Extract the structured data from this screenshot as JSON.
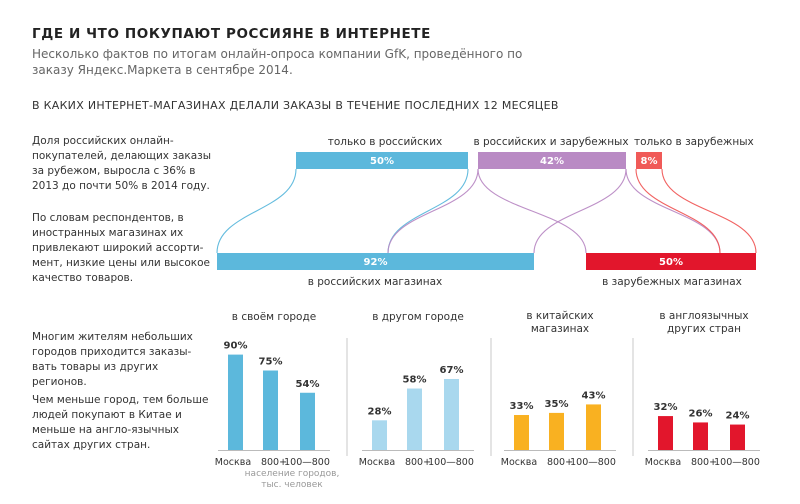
{
  "title": "ГДЕ И ЧТО ПОКУПАЮТ РОССИЯНЕ В ИНТЕРНЕТЕ",
  "subtitle": "Несколько фактов по итогам онлайн-опроса компании GfK, проведённого по заказу Яндекс.Маркета в сентябре 2014.",
  "section_title": "В КАКИХ ИНТЕРНЕТ-МАГАЗИНАХ ДЕЛАЛИ ЗАКАЗЫ В ТЕЧЕНИЕ ПОСЛЕДНИХ 12 МЕСЯЦЕВ",
  "text": {
    "para1": "Доля российских онлайн-покупателей, делающих заказы за рубежом, выросла с 36% в 2013 до почти 50% в 2014 году.",
    "para2": "По словам респондентов, в иностранных магазинах их привлекают широкий ассорти-мент, низкие цены или высокое качество товаров.",
    "para3": "Многим жителям небольших городов приходится заказы-вать товары из других регионов.",
    "para4": "Чем меньше город, тем больше людей покупают в Китае и меньше на англо-язычных сайтах других стран."
  },
  "colors": {
    "blue": "#5cb8dc",
    "purple": "#b98ac4",
    "red_light": "#f05a58",
    "red": "#e2162c",
    "light_blue": "#a9d8ee",
    "yellow": "#f9b121",
    "divider": "#c8c8c8",
    "axis": "#bbbbbb"
  },
  "chart_data": [
    {
      "type": "sankey",
      "top": [
        {
          "label": "только в российских",
          "value": "50%"
        },
        {
          "label": "в российских и зарубежных",
          "value": "42%"
        },
        {
          "label": "только в зарубежных",
          "value": "8%"
        }
      ],
      "bottom": [
        {
          "label": "в российских магазинах",
          "value": "92%"
        },
        {
          "label": "в зарубежных магазинах",
          "value": "50%"
        }
      ]
    },
    {
      "type": "bar",
      "x_note": "население городов, тыс. человек",
      "categories": [
        "Москва",
        "800+",
        "100—800"
      ],
      "groups": [
        {
          "title": "в своём городе",
          "values": [
            90,
            75,
            54
          ],
          "color": "blue"
        },
        {
          "title": "в другом городе",
          "values": [
            28,
            58,
            67
          ],
          "color": "light_blue"
        },
        {
          "title": "в китайских магазинах",
          "values": [
            33,
            35,
            43
          ],
          "color": "yellow"
        },
        {
          "title": "в англоязычных других стран",
          "values": [
            32,
            26,
            24
          ],
          "color": "red"
        }
      ]
    }
  ]
}
